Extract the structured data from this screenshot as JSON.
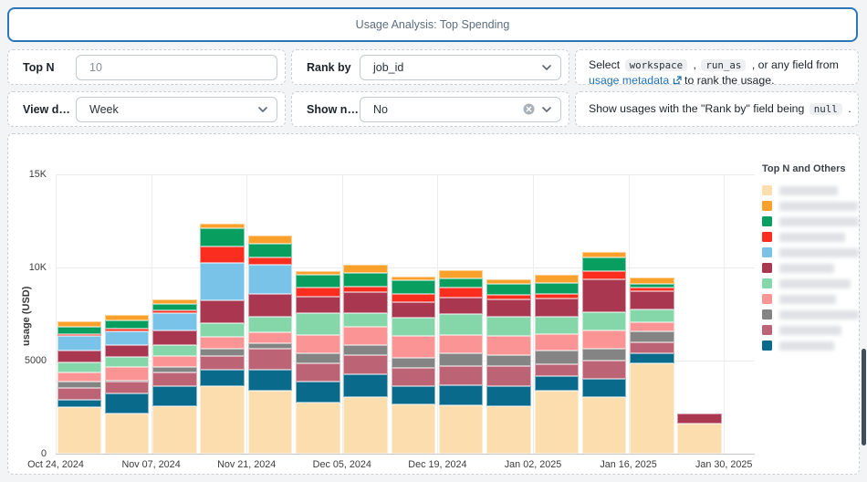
{
  "header": {
    "title": "Usage Analysis: Top Spending"
  },
  "controls": {
    "top_n": {
      "label": "Top N",
      "value": "10"
    },
    "rank_by": {
      "label": "Rank by",
      "value": "job_id"
    },
    "view_data_by": {
      "label": "View dat...",
      "value": "Week"
    },
    "show_null": {
      "label": "Show null",
      "value": "No"
    }
  },
  "help": {
    "rank_by_help": {
      "prefix": "Select",
      "code1": "workspace",
      "comma": ",",
      "code2": "run_as",
      "middle": ", or any field from",
      "link": "usage metadata",
      "suffix": "to rank the usage."
    },
    "show_null_help": {
      "prefix": "Show usages with the \"Rank by\" field being",
      "code": "null",
      "suffix": "."
    }
  },
  "chart_data": {
    "type": "bar",
    "stacked": true,
    "title": "",
    "xlabel": "",
    "ylabel": "usage (USD)",
    "ylim": [
      0,
      15000
    ],
    "grid": true,
    "y_ticks": [
      {
        "value": 0,
        "label": "0"
      },
      {
        "value": 5000,
        "label": "5000"
      },
      {
        "value": 10000,
        "label": "10K"
      },
      {
        "value": 15000,
        "label": "15K"
      }
    ],
    "x_ticks": [
      "Oct 24, 2024",
      "Nov 07, 2024",
      "Nov 21, 2024",
      "Dec 05, 2024",
      "Dec 19, 2024",
      "Jan 02, 2025",
      "Jan 16, 2025",
      "Jan 30, 2025"
    ],
    "weeks": [
      "Oct 24, 2024",
      "Oct 31, 2024",
      "Nov 07, 2024",
      "Nov 14, 2024",
      "Nov 21, 2024",
      "Nov 28, 2024",
      "Dec 05, 2024",
      "Dec 12, 2024",
      "Dec 19, 2024",
      "Dec 26, 2024",
      "Jan 02, 2025",
      "Jan 09, 2025",
      "Jan 16, 2025",
      "Jan 23, 2025"
    ],
    "stack_order": "bottom to top",
    "series": [
      {
        "name_redacted": true,
        "color": "#fbddae",
        "values": [
          2500,
          2150,
          2550,
          3650,
          3360,
          2770,
          3050,
          2640,
          2580,
          2530,
          3400,
          3020,
          4840,
          1600
        ]
      },
      {
        "name_redacted": true,
        "color": "#0a6a8c",
        "values": [
          380,
          1080,
          1100,
          880,
          1170,
          1090,
          1220,
          980,
          1120,
          1080,
          780,
          980,
          570,
          0
        ]
      },
      {
        "name_redacted": true,
        "color": "#bc6376",
        "values": [
          650,
          620,
          700,
          730,
          1120,
          980,
          1040,
          1010,
          1030,
          1080,
          640,
          980,
          570,
          0
        ]
      },
      {
        "name_redacted": true,
        "color": "#848484",
        "values": [
          350,
          90,
          330,
          390,
          290,
          570,
          540,
          540,
          640,
          590,
          730,
          680,
          570,
          0
        ]
      },
      {
        "name_redacted": true,
        "color": "#fb9595",
        "values": [
          500,
          700,
          580,
          640,
          590,
          980,
          980,
          1170,
          980,
          1030,
          880,
          980,
          490,
          0
        ]
      },
      {
        "name_redacted": true,
        "color": "#85d7a9",
        "values": [
          530,
          560,
          560,
          730,
          830,
          1170,
          730,
          980,
          1170,
          1030,
          930,
          980,
          700,
          0
        ]
      },
      {
        "name_redacted": true,
        "color": "#a93750",
        "values": [
          610,
          610,
          800,
          1220,
          1220,
          880,
          1110,
          830,
          880,
          930,
          980,
          1760,
          980,
          540
        ]
      },
      {
        "name_redacted": true,
        "color": "#79c3e8",
        "values": [
          810,
          750,
          950,
          2000,
          1550,
          0,
          0,
          0,
          0,
          0,
          0,
          0,
          0,
          0
        ]
      },
      {
        "name_redacted": true,
        "color": "#fa2d1e",
        "values": [
          70,
          175,
          150,
          880,
          410,
          490,
          310,
          440,
          540,
          245,
          245,
          440,
          195,
          0
        ]
      },
      {
        "name_redacted": true,
        "color": "#089e60",
        "values": [
          420,
          430,
          300,
          980,
          730,
          680,
          730,
          730,
          490,
          590,
          590,
          730,
          195,
          0
        ]
      },
      {
        "name_redacted": true,
        "color": "#f9a12b",
        "values": [
          280,
          290,
          270,
          245,
          440,
          195,
          440,
          195,
          440,
          245,
          440,
          290,
          370,
          0
        ]
      }
    ],
    "legend": {
      "title": "Top N and Others",
      "position": "right",
      "labels_redacted": true,
      "colors_top_to_bottom": [
        "#fbddae",
        "#f9a12b",
        "#089e60",
        "#fa2d1e",
        "#79c3e8",
        "#a93750",
        "#85d7a9",
        "#fb9595",
        "#848484",
        "#bc6376",
        "#0a6a8c"
      ]
    }
  }
}
